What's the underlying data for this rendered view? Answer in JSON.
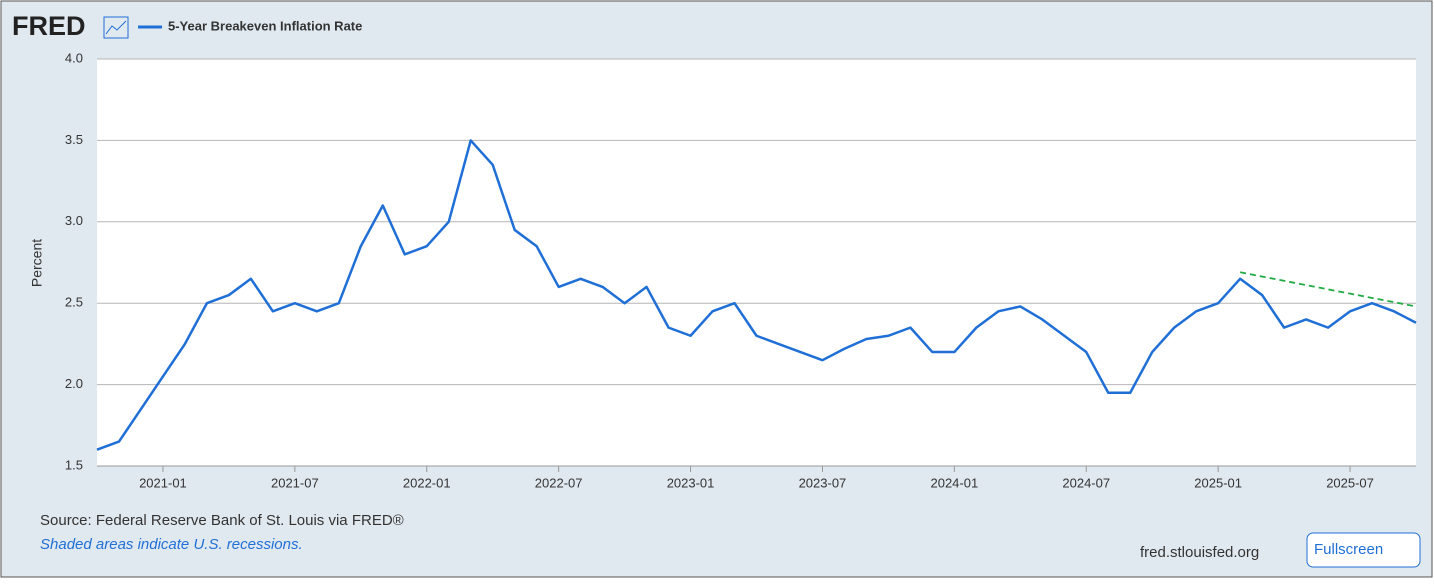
{
  "chart_data": {
    "type": "line",
    "logo": "FRED",
    "y_label": "Percent",
    "x": [
      "2020-10",
      "2020-11",
      "2020-12",
      "2021-01",
      "2021-02",
      "2021-03",
      "2021-04",
      "2021-05",
      "2021-06",
      "2021-07",
      "2021-08",
      "2021-09",
      "2021-10",
      "2021-11",
      "2021-12",
      "2022-01",
      "2022-02",
      "2022-03",
      "2022-04",
      "2022-05",
      "2022-06",
      "2022-07",
      "2022-08",
      "2022-09",
      "2022-10",
      "2022-11",
      "2022-12",
      "2023-01",
      "2023-02",
      "2023-03",
      "2023-04",
      "2023-05",
      "2023-06",
      "2023-07",
      "2023-08",
      "2023-09",
      "2023-10",
      "2023-11",
      "2023-12",
      "2024-01",
      "2024-02",
      "2024-03",
      "2024-04",
      "2024-05",
      "2024-06",
      "2024-07",
      "2024-08",
      "2024-09",
      "2024-10",
      "2024-11",
      "2024-12",
      "2025-01",
      "2025-02",
      "2025-03",
      "2025-04",
      "2025-05",
      "2025-06",
      "2025-07",
      "2025-08",
      "2025-09",
      "2025-10"
    ],
    "series": [
      {
        "name": "5-Year Breakeven Inflation Rate",
        "color": "#1f6fd6",
        "values": [
          1.6,
          1.65,
          1.85,
          2.05,
          2.25,
          2.5,
          2.55,
          2.65,
          2.45,
          2.5,
          2.45,
          2.5,
          2.85,
          3.1,
          2.8,
          2.85,
          3.0,
          3.5,
          3.35,
          2.95,
          2.85,
          2.6,
          2.65,
          2.6,
          2.5,
          2.6,
          2.35,
          2.3,
          2.45,
          2.5,
          2.3,
          2.25,
          2.2,
          2.15,
          2.22,
          2.28,
          2.3,
          2.35,
          2.2,
          2.2,
          2.35,
          2.45,
          2.48,
          2.4,
          2.3,
          2.2,
          1.95,
          1.95,
          2.2,
          2.35,
          2.45,
          2.5,
          2.65,
          2.55,
          2.35,
          2.4,
          2.35,
          2.45,
          2.5,
          2.45,
          2.38
        ]
      }
    ],
    "trend_line": {
      "x": [
        "2025-02",
        "2025-10"
      ],
      "values": [
        2.69,
        2.48
      ],
      "color": "#22aa44"
    },
    "xlim": [
      "2020-10",
      "2025-10"
    ],
    "xticks": [
      "2021-01",
      "2021-07",
      "2022-01",
      "2022-07",
      "2023-01",
      "2023-07",
      "2024-01",
      "2024-07",
      "2025-01",
      "2025-07"
    ],
    "ylim": [
      1.5,
      4.0
    ],
    "yticks": [
      1.5,
      {
        "value": 2.0,
        "label": "2.0"
      },
      2.5,
      {
        "value": 3.0,
        "label": "3.0"
      },
      3.5,
      {
        "value": 4.0,
        "label": "4.0"
      }
    ],
    "grid": true,
    "source": "Source: Federal Reserve Bank of St. Louis via FRED®",
    "note": "Shaded areas indicate U.S. recessions.",
    "site": "fred.stlouisfed.org",
    "button": "Fullscreen"
  }
}
